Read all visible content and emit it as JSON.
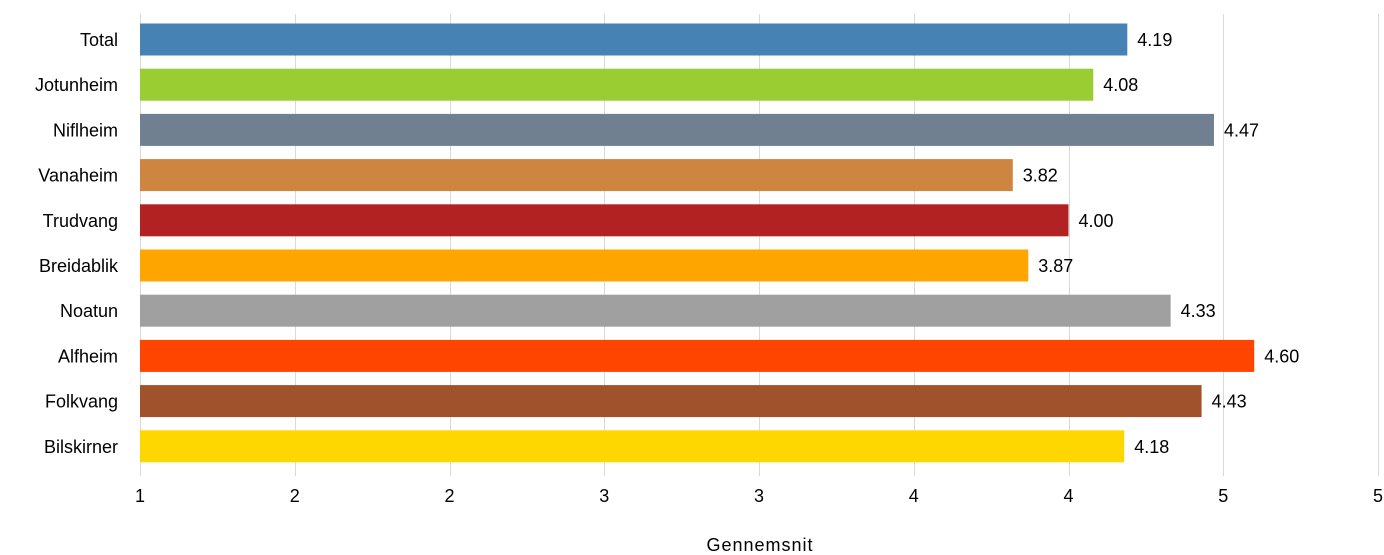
{
  "chart_data": {
    "type": "bar",
    "orientation": "horizontal",
    "title": "",
    "xlabel": "Gennemsnit",
    "ylabel": "",
    "categories": [
      "Total",
      "Jotunheim",
      "Niflheim",
      "Vanaheim",
      "Trudvang",
      "Breidablik",
      "Noatun",
      "Alfheim",
      "Folkvang",
      "Bilskirner"
    ],
    "values": [
      4.19,
      4.08,
      4.47,
      3.82,
      4.0,
      3.87,
      4.33,
      4.6,
      4.43,
      4.18
    ],
    "value_labels": [
      "4.19",
      "4.08",
      "4.47",
      "3.82",
      "4.00",
      "3.87",
      "4.33",
      "4.60",
      "4.43",
      "4.18"
    ],
    "colors": [
      "#4682b4",
      "#9acd32",
      "#708090",
      "#cd853f",
      "#b22222",
      "#ffa500",
      "#a0a0a0",
      "#ff4500",
      "#a0522d",
      "#ffd700"
    ],
    "xlim": [
      1,
      5
    ],
    "xticks": [
      1,
      1.5,
      2,
      2.5,
      3,
      3.5,
      4,
      4.5,
      5
    ],
    "xtick_labels": [
      "1",
      "2",
      "2",
      "3",
      "3",
      "4",
      "4",
      "5",
      "5"
    ],
    "grid": "vertical",
    "legend": "none"
  }
}
